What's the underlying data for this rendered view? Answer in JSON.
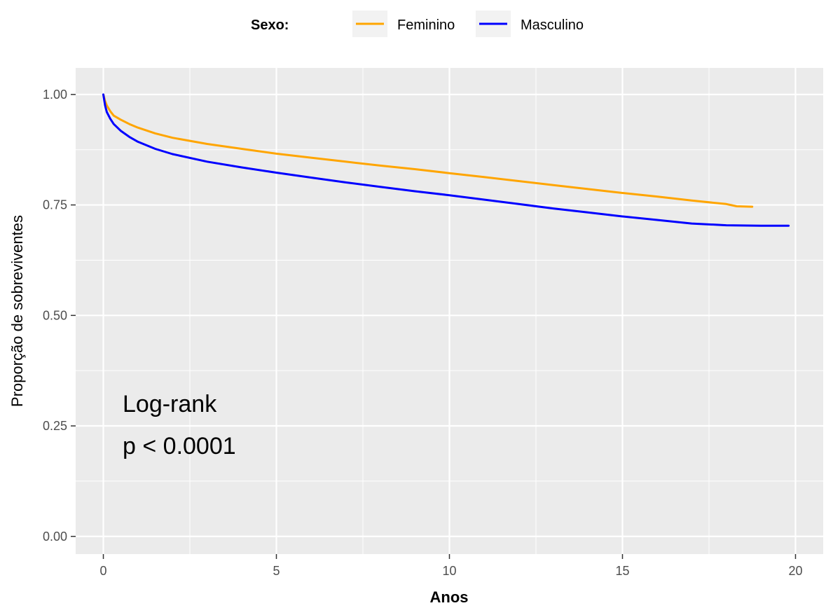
{
  "chart_data": {
    "type": "line",
    "title": "",
    "xlabel": "Anos",
    "ylabel": "Proporção de sobreviventes",
    "xlim": [
      -0.8,
      20.8
    ],
    "ylim": [
      -0.04,
      1.06
    ],
    "x_ticks": [
      0,
      5,
      10,
      15,
      20
    ],
    "x_tick_labels": [
      "0",
      "5",
      "10",
      "15",
      "20"
    ],
    "y_ticks": [
      0,
      0.25,
      0.5,
      0.75,
      1.0
    ],
    "y_tick_labels": [
      "0.00",
      "0.25",
      "0.50",
      "0.75",
      "1.00"
    ],
    "grid": true,
    "legend": {
      "title": "Sexo:",
      "position": "top"
    },
    "annotations": [
      "Log-rank",
      "p < 0.0001"
    ],
    "series": [
      {
        "name": "Feminino",
        "color": "#FFA500",
        "x": [
          0,
          0.05,
          0.1,
          0.2,
          0.3,
          0.5,
          0.75,
          1,
          1.5,
          2,
          3,
          4,
          5,
          6,
          7,
          8,
          9,
          10,
          11,
          12,
          13,
          14,
          15,
          16,
          17,
          18,
          18.3,
          18.75
        ],
        "y": [
          1.0,
          0.985,
          0.975,
          0.962,
          0.952,
          0.943,
          0.933,
          0.925,
          0.912,
          0.902,
          0.888,
          0.877,
          0.866,
          0.857,
          0.848,
          0.839,
          0.831,
          0.822,
          0.813,
          0.804,
          0.795,
          0.786,
          0.777,
          0.769,
          0.76,
          0.752,
          0.747,
          0.746
        ]
      },
      {
        "name": "Masculino",
        "color": "#0000FF",
        "x": [
          0,
          0.05,
          0.1,
          0.2,
          0.3,
          0.5,
          0.75,
          1,
          1.5,
          2,
          3,
          4,
          5,
          6,
          7,
          8,
          9,
          10,
          11,
          12,
          13,
          14,
          15,
          16,
          17,
          18,
          19,
          19.8
        ],
        "y": [
          1.0,
          0.975,
          0.96,
          0.945,
          0.933,
          0.918,
          0.904,
          0.893,
          0.877,
          0.865,
          0.848,
          0.835,
          0.823,
          0.812,
          0.801,
          0.791,
          0.781,
          0.772,
          0.762,
          0.752,
          0.742,
          0.733,
          0.724,
          0.716,
          0.708,
          0.704,
          0.703,
          0.703
        ]
      }
    ]
  }
}
